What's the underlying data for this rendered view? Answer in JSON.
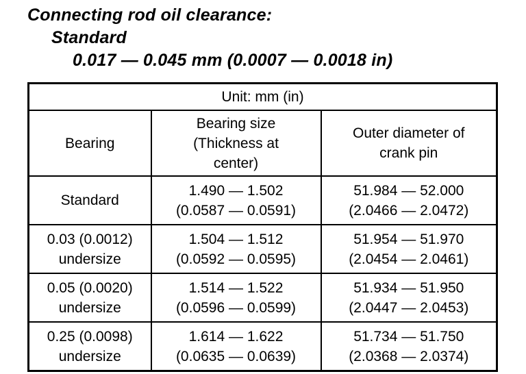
{
  "title": {
    "line1": "Connecting rod oil clearance:",
    "line2": "Standard",
    "line3": "0.017 — 0.045 mm (0.0007 — 0.0018 in)"
  },
  "table": {
    "unit_label": "Unit: mm (in)",
    "headers": {
      "bearing": "Bearing",
      "bearing_size": "Bearing size\n(Thickness at\ncenter)",
      "outer_diameter": "Outer diameter of\ncrank pin"
    },
    "rows": [
      {
        "bearing": "Standard",
        "bearing_size": "1.490 — 1.502\n(0.0587 — 0.0591)",
        "outer_diameter": "51.984 — 52.000\n(2.0466 — 2.0472)"
      },
      {
        "bearing": "0.03 (0.0012)\nundersize",
        "bearing_size": "1.504 — 1.512\n(0.0592 — 0.0595)",
        "outer_diameter": "51.954 — 51.970\n(2.0454 — 2.0461)"
      },
      {
        "bearing": "0.05 (0.0020)\nundersize",
        "bearing_size": "1.514 — 1.522\n(0.0596 — 0.0599)",
        "outer_diameter": "51.934 — 51.950\n(2.0447 — 2.0453)"
      },
      {
        "bearing": "0.25 (0.0098)\nundersize",
        "bearing_size": "1.614 — 1.622\n(0.0635 — 0.0639)",
        "outer_diameter": "51.734 — 51.750\n(2.0368 — 2.0374)"
      }
    ],
    "colors": {
      "text": "#000000",
      "background": "#ffffff",
      "border": "#000000"
    }
  }
}
